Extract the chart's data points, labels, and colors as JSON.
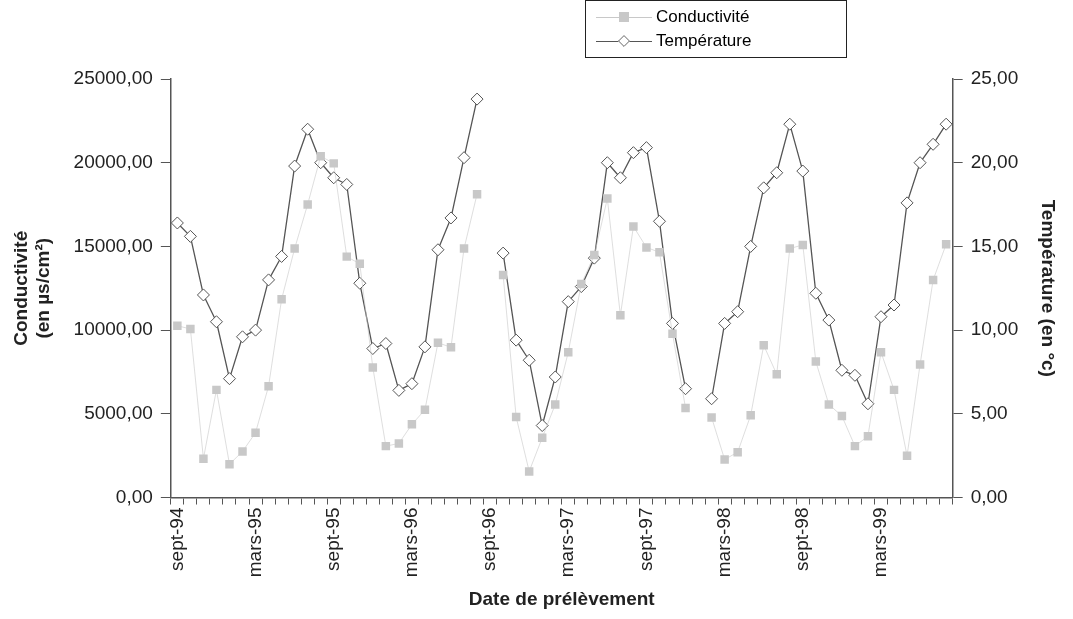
{
  "chart_data": {
    "type": "line",
    "xlabel": "Date de prélèvement",
    "ylabel": "Conductivité\n(en µs/cm²)",
    "y2label": "Température (en °c)",
    "categories": [
      "sept-94",
      null,
      null,
      null,
      null,
      null,
      "mars-95",
      null,
      null,
      null,
      null,
      null,
      "sept-95",
      null,
      null,
      null,
      null,
      null,
      "mars-96",
      null,
      null,
      null,
      null,
      null,
      "sept-96",
      null,
      null,
      null,
      null,
      null,
      "mars-97",
      null,
      null,
      null,
      null,
      null,
      "sept-97",
      null,
      null,
      null,
      null,
      null,
      "mars-98",
      null,
      null,
      null,
      null,
      null,
      "sept-98",
      null,
      null,
      null,
      null,
      null,
      "mars-99",
      null,
      null,
      null,
      null,
      null
    ],
    "series": [
      {
        "name": "Conductivité",
        "color": "#c8c8c8",
        "marker": "square",
        "values": [
          10260,
          10070,
          2320,
          6430,
          1990,
          2750,
          3870,
          6650,
          11840,
          14870,
          17510,
          20390,
          19960,
          14390,
          13960,
          7770,
          3070,
          3230,
          4370,
          5240,
          9240,
          8980,
          14870,
          18120,
          null,
          13290,
          4810,
          1560,
          3570,
          5560,
          8680,
          12750,
          14480,
          17860,
          10890,
          16190,
          14940,
          14650,
          9780,
          5350,
          null,
          4780,
          2270,
          2710,
          4910,
          9090,
          7360,
          14870,
          15090,
          8120,
          5560,
          4870,
          3070,
          3660,
          8680,
          6430,
          2490,
          7940,
          12990,
          15130
        ]
      },
      {
        "name": "Température",
        "color": "#555555",
        "marker": "diamond",
        "axis": "y2",
        "values": [
          16.4,
          15.6,
          12.1,
          10.5,
          7.1,
          9.6,
          10.0,
          13.0,
          14.4,
          19.8,
          22.0,
          20.0,
          19.1,
          18.7,
          12.8,
          8.9,
          9.2,
          6.4,
          6.8,
          9.0,
          14.8,
          16.7,
          20.3,
          23.8,
          null,
          14.6,
          9.4,
          8.2,
          4.3,
          7.2,
          11.7,
          12.6,
          14.3,
          20.0,
          19.1,
          20.6,
          20.9,
          16.5,
          10.4,
          6.5,
          null,
          5.9,
          10.4,
          11.1,
          15.0,
          18.5,
          19.4,
          22.3,
          19.5,
          12.2,
          10.6,
          7.6,
          7.3,
          5.6,
          10.8,
          11.5,
          17.6,
          20.0,
          21.1,
          22.3
        ]
      }
    ],
    "ylim": [
      0,
      25000
    ],
    "yticks": [
      {
        "value": 0,
        "label": "0,00"
      },
      {
        "value": 5000,
        "label": "5000,00"
      },
      {
        "value": 10000,
        "label": "10000,00"
      },
      {
        "value": 15000,
        "label": "15000,00"
      },
      {
        "value": 20000,
        "label": "20000,00"
      },
      {
        "value": 25000,
        "label": "25000,00"
      }
    ],
    "y2lim": [
      0,
      25
    ],
    "y2ticks": [
      {
        "value": 0,
        "label": "0,00"
      },
      {
        "value": 5,
        "label": "5,00"
      },
      {
        "value": 10,
        "label": "10,00"
      },
      {
        "value": 15,
        "label": "15,00"
      },
      {
        "value": 20,
        "label": "20,00"
      },
      {
        "value": 25,
        "label": "25,00"
      }
    ],
    "grid": false,
    "legend": "top right"
  }
}
